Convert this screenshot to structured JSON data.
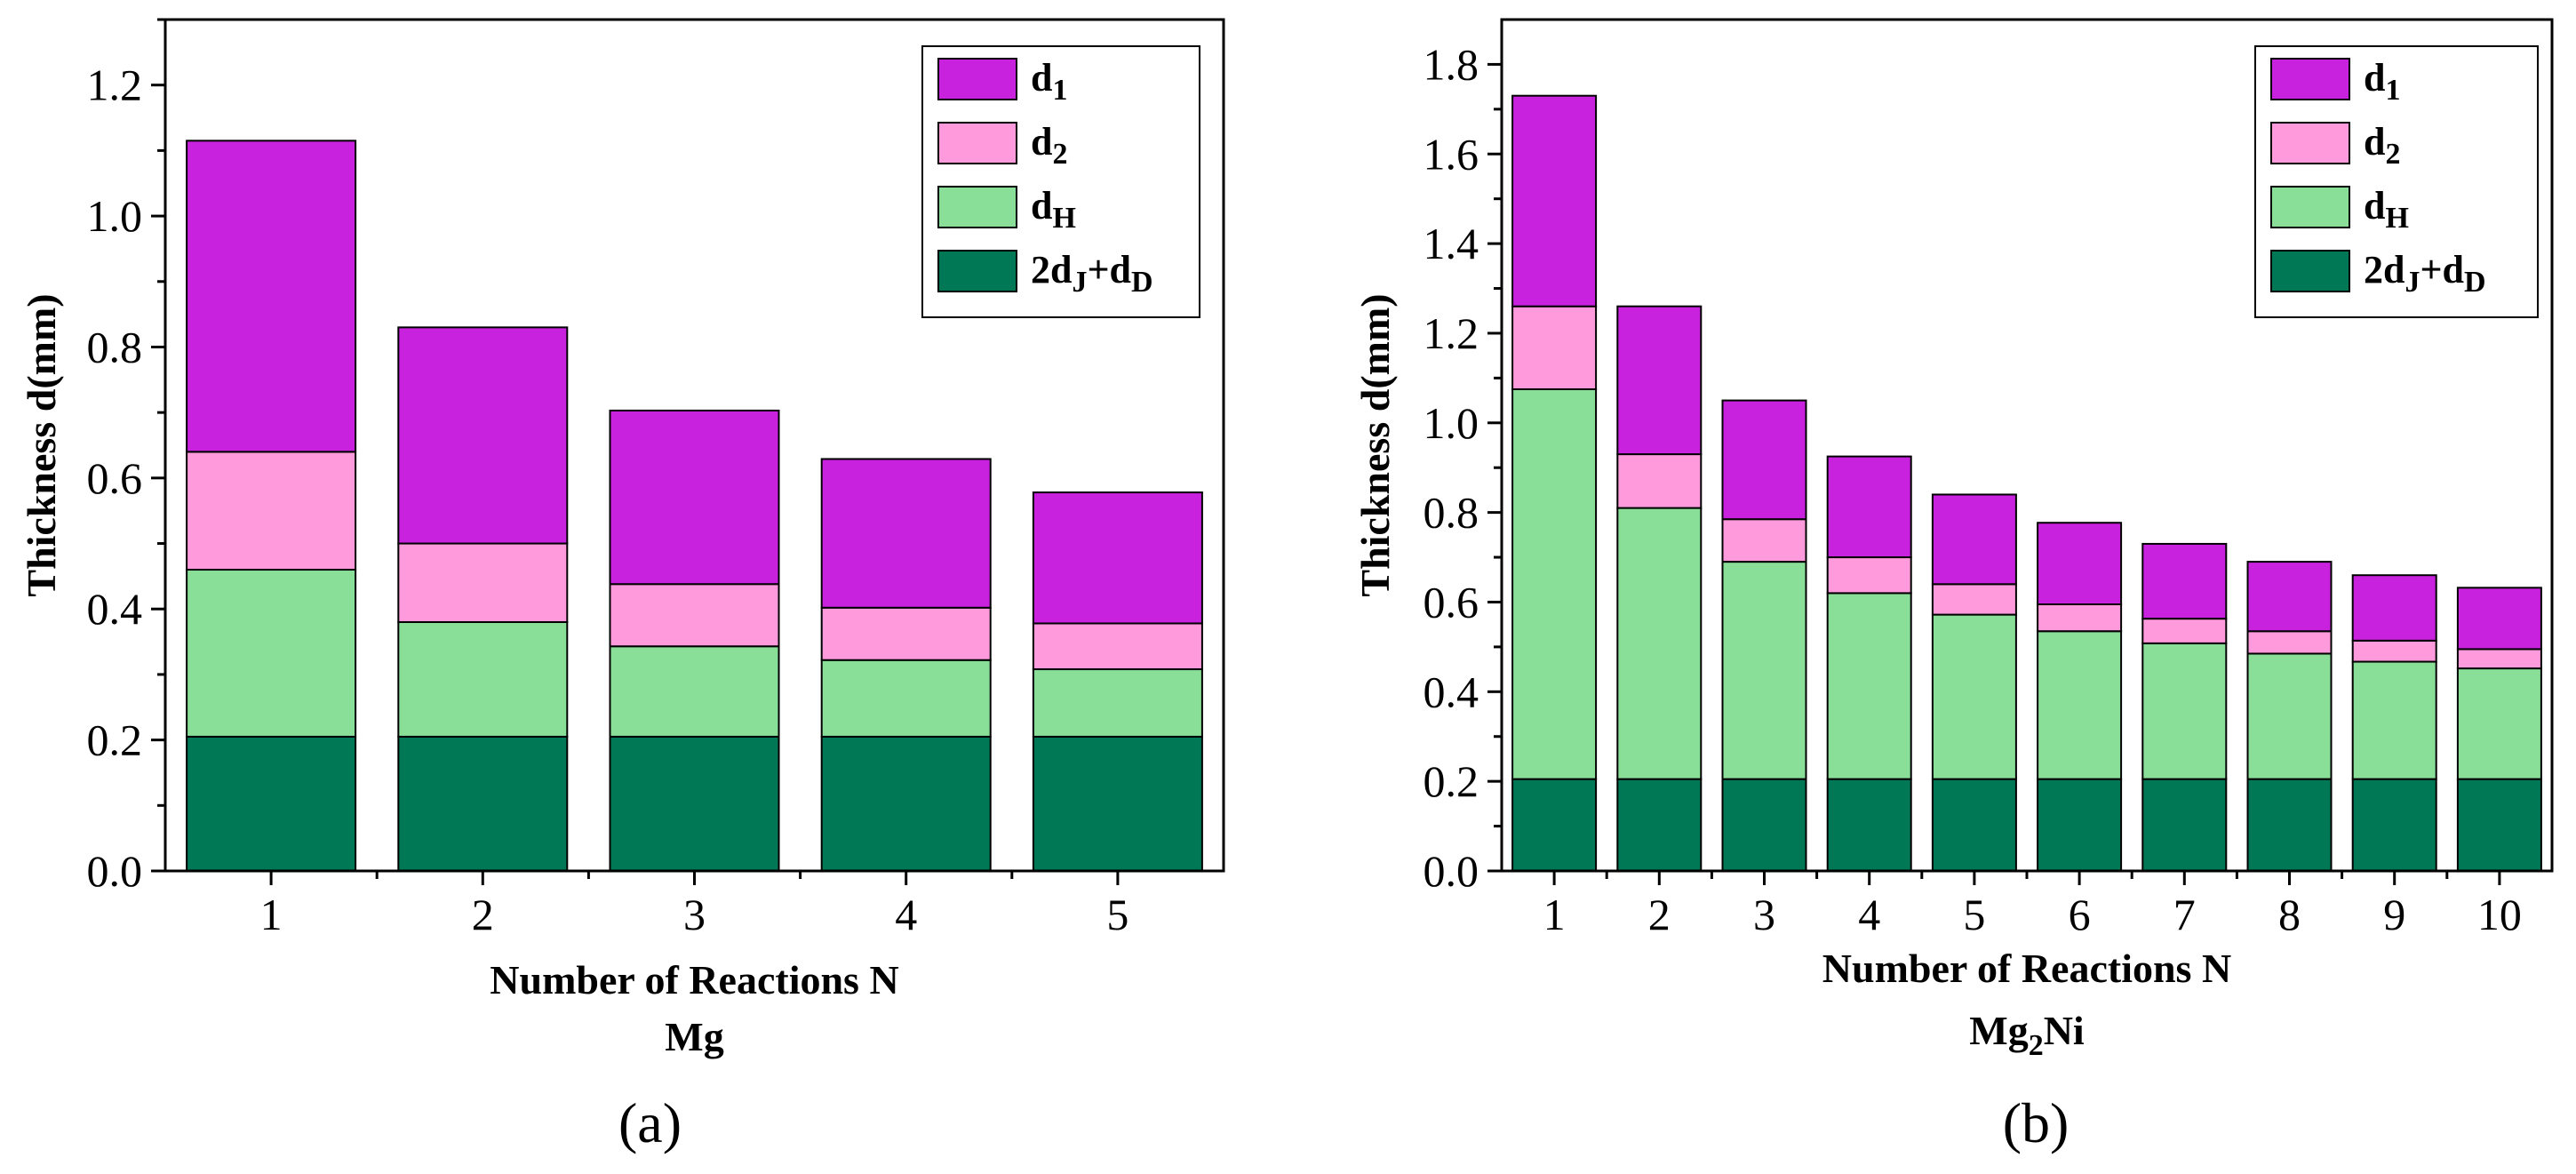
{
  "chart_data": [
    {
      "type": "bar",
      "stacked": true,
      "panel_label": "(a)",
      "title": "Mg",
      "xlabel": "Number of Reactions N",
      "ylabel": "Thickness d(mm)",
      "ylim": [
        0,
        1.3
      ],
      "yticks": [
        "0.0",
        "0.2",
        "0.4",
        "0.6",
        "0.8",
        "1.0",
        "1.2"
      ],
      "categories": [
        "1",
        "2",
        "3",
        "4",
        "5"
      ],
      "legend_position": "top-right",
      "series": [
        {
          "name": "2dJ+dD",
          "base": "2d",
          "sub1": "J",
          "mid": "+d",
          "sub2": "D",
          "color": "#007856",
          "values": [
            0.205,
            0.205,
            0.205,
            0.205,
            0.205
          ]
        },
        {
          "name": "dH",
          "base": "d",
          "sub1": "H",
          "color": "#8ADF98",
          "values": [
            0.255,
            0.175,
            0.138,
            0.117,
            0.103
          ]
        },
        {
          "name": "d2",
          "base": "d",
          "sub1": "2",
          "color": "#FF9BDC",
          "values": [
            0.18,
            0.12,
            0.095,
            0.08,
            0.07
          ]
        },
        {
          "name": "d1",
          "base": "d",
          "sub1": "1",
          "color": "#C922DE",
          "values": [
            0.475,
            0.33,
            0.265,
            0.227,
            0.2
          ]
        }
      ]
    },
    {
      "type": "bar",
      "stacked": true,
      "panel_label": "(b)",
      "title": "Mg2Ni",
      "title_parts": {
        "pre": "Mg",
        "sub": "2",
        "post": "Ni"
      },
      "xlabel": "Number of Reactions N",
      "ylabel": "Thickness d(mm)",
      "ylim": [
        0,
        1.9
      ],
      "yticks": [
        "0.0",
        "0.2",
        "0.4",
        "0.6",
        "0.8",
        "1.0",
        "1.2",
        "1.4",
        "1.6",
        "1.8"
      ],
      "categories": [
        "1",
        "2",
        "3",
        "4",
        "5",
        "6",
        "7",
        "8",
        "9",
        "10"
      ],
      "legend_position": "top-right",
      "series": [
        {
          "name": "2dJ+dD",
          "base": "2d",
          "sub1": "J",
          "mid": "+d",
          "sub2": "D",
          "color": "#007856",
          "values": [
            0.205,
            0.205,
            0.205,
            0.205,
            0.205,
            0.205,
            0.205,
            0.205,
            0.205,
            0.205
          ]
        },
        {
          "name": "dH",
          "base": "d",
          "sub1": "H",
          "color": "#8ADF98",
          "values": [
            0.87,
            0.605,
            0.485,
            0.415,
            0.367,
            0.33,
            0.303,
            0.28,
            0.262,
            0.247
          ]
        },
        {
          "name": "d2",
          "base": "d",
          "sub1": "2",
          "color": "#FF9BDC",
          "values": [
            0.185,
            0.12,
            0.095,
            0.08,
            0.068,
            0.06,
            0.055,
            0.05,
            0.047,
            0.043
          ]
        },
        {
          "name": "d1",
          "base": "d",
          "sub1": "1",
          "color": "#C922DE",
          "values": [
            0.47,
            0.33,
            0.265,
            0.225,
            0.2,
            0.182,
            0.167,
            0.155,
            0.146,
            0.137
          ]
        }
      ]
    }
  ]
}
